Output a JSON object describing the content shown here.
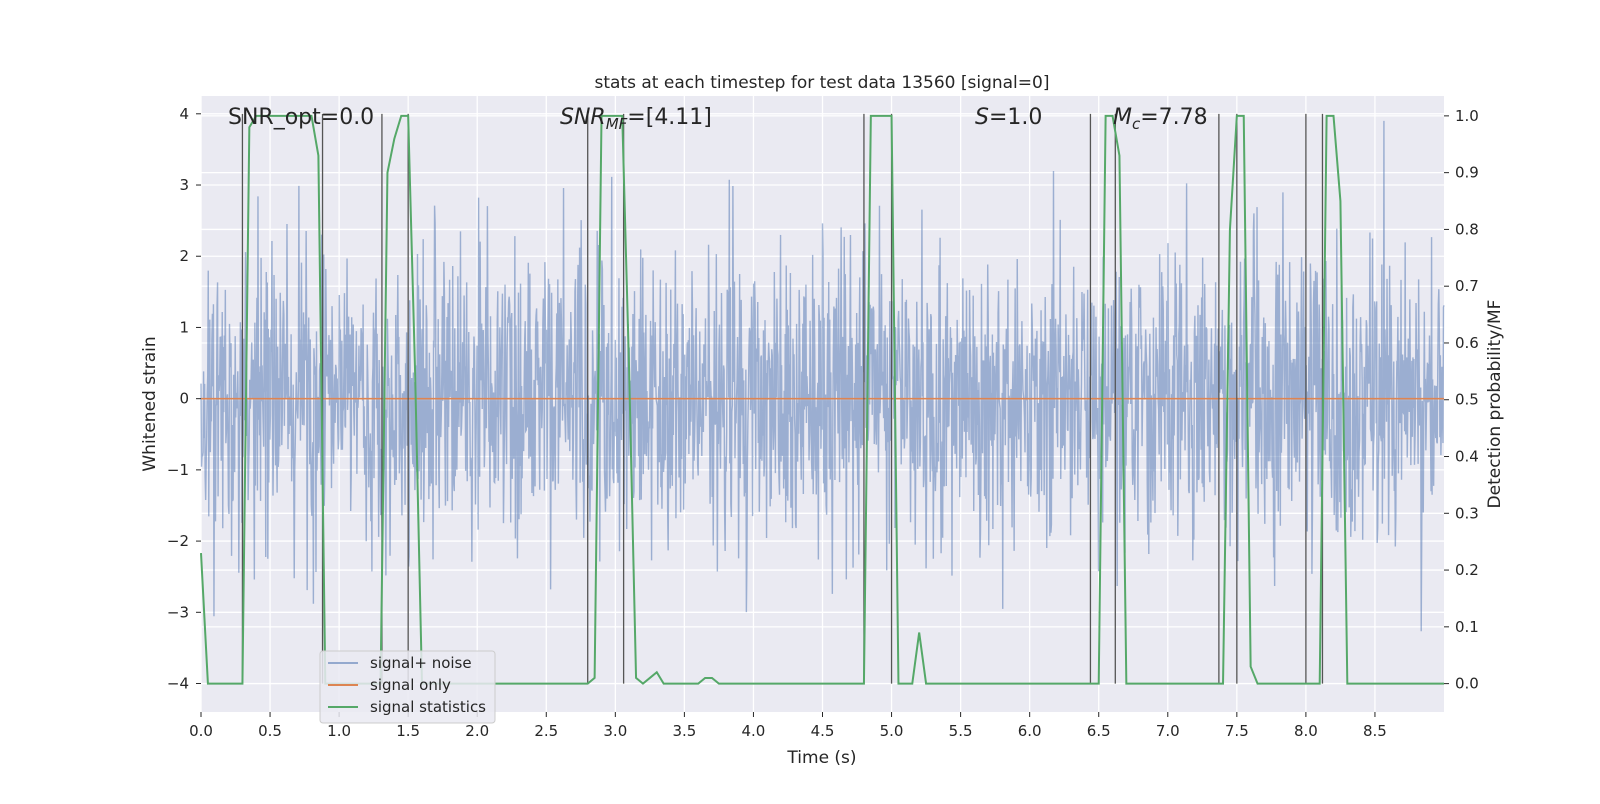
{
  "chart_data": {
    "type": "line",
    "title": "stats at each timestep for test data 13560 [signal=0]",
    "xlabel": "Time (s)",
    "ylabel_left": "Whitened strain",
    "ylabel_right": "Detection probability/MF",
    "xlim": [
      0,
      9.0
    ],
    "ylim_left": [
      -4.4,
      4.25
    ],
    "ylim_right": [
      -0.05,
      1.035
    ],
    "x_ticks": [
      "0.0",
      "0.5",
      "1.0",
      "1.5",
      "2.0",
      "2.5",
      "3.0",
      "3.5",
      "4.0",
      "4.5",
      "5.0",
      "5.5",
      "6.0",
      "6.5",
      "7.0",
      "7.5",
      "8.0",
      "8.5"
    ],
    "y_left_ticks": [
      "4",
      "3",
      "2",
      "1",
      "0",
      "−1",
      "−2",
      "−3",
      "−4"
    ],
    "y_right_ticks": [
      "1.0",
      "0.9",
      "0.8",
      "0.7",
      "0.6",
      "0.5",
      "0.4",
      "0.3",
      "0.2",
      "0.1",
      "0.0"
    ],
    "grid": true,
    "legend_position": "lower-left",
    "annotations": {
      "snr_opt": "SNR_opt=0.0",
      "snr_mf_sym": "SNR",
      "snr_mf_sub": "MF",
      "snr_mf_val": "=[4.11]",
      "s_sym": "S",
      "s_val": "=1.0",
      "mc_sym": "M",
      "mc_sub": "c",
      "mc_val": "=7.78"
    },
    "series": [
      {
        "name": "signal+ noise",
        "color": "#4c72b0",
        "noise_std": 1.0,
        "axis": "left"
      },
      {
        "name": "signal only",
        "color": "#dd8452",
        "y": 0,
        "axis": "left"
      },
      {
        "name": "signal statistics",
        "color": "#55a868",
        "axis": "right",
        "x": [
          0.0,
          0.05,
          0.1,
          0.15,
          0.2,
          0.25,
          0.3,
          0.35,
          0.4,
          0.45,
          0.5,
          0.55,
          0.6,
          0.65,
          0.7,
          0.75,
          0.8,
          0.85,
          0.9,
          0.95,
          1.0,
          1.05,
          1.1,
          1.15,
          1.2,
          1.25,
          1.3,
          1.35,
          1.4,
          1.45,
          1.5,
          1.55,
          1.6,
          1.65,
          1.7,
          1.75,
          1.8,
          1.85,
          1.9,
          1.95,
          2.0,
          2.05,
          2.1,
          2.15,
          2.2,
          2.25,
          2.3,
          2.35,
          2.4,
          2.45,
          2.5,
          2.55,
          2.6,
          2.65,
          2.7,
          2.75,
          2.8,
          2.85,
          2.9,
          2.95,
          3.0,
          3.05,
          3.1,
          3.15,
          3.2,
          3.25,
          3.3,
          3.35,
          3.4,
          3.45,
          3.5,
          3.55,
          3.6,
          3.65,
          3.7,
          3.75,
          3.8,
          3.85,
          3.9,
          3.95,
          4.0,
          4.05,
          4.1,
          4.15,
          4.2,
          4.25,
          4.3,
          4.35,
          4.4,
          4.45,
          4.5,
          4.55,
          4.6,
          4.65,
          4.7,
          4.75,
          4.8,
          4.85,
          4.9,
          4.95,
          5.0,
          5.05,
          5.1,
          5.15,
          5.2,
          5.25,
          5.3,
          5.35,
          5.4,
          5.45,
          5.5,
          5.55,
          5.6,
          5.65,
          5.7,
          5.75,
          5.8,
          5.85,
          5.9,
          5.95,
          6.0,
          6.05,
          6.1,
          6.15,
          6.2,
          6.25,
          6.3,
          6.35,
          6.4,
          6.45,
          6.5,
          6.55,
          6.6,
          6.65,
          6.7,
          6.75,
          6.8,
          6.85,
          6.9,
          6.95,
          7.0,
          7.05,
          7.1,
          7.15,
          7.2,
          7.25,
          7.3,
          7.35,
          7.4,
          7.45,
          7.5,
          7.55,
          7.6,
          7.65,
          7.7,
          7.75,
          7.8,
          7.85,
          7.9,
          7.95,
          8.0,
          8.05,
          8.1,
          8.15,
          8.2,
          8.25,
          8.3,
          8.35,
          8.4,
          8.45,
          8.5,
          8.55,
          8.6,
          8.65,
          8.7,
          8.75,
          8.8,
          8.85,
          8.9,
          8.95,
          9.0
        ],
        "y": [
          0.23,
          0.0,
          0.0,
          0.0,
          0.0,
          0.0,
          0.0,
          0.98,
          1.0,
          1.0,
          1.0,
          1.0,
          1.0,
          1.0,
          1.0,
          1.0,
          1.0,
          0.93,
          0.0,
          0.0,
          0.0,
          0.0,
          0.0,
          0.0,
          0.0,
          0.0,
          0.0,
          0.9,
          0.96,
          1.0,
          1.0,
          0.55,
          0.0,
          0.0,
          0.0,
          0.0,
          0.0,
          0.0,
          0.0,
          0.0,
          0.0,
          0.0,
          0.0,
          0.0,
          0.0,
          0.0,
          0.0,
          0.0,
          0.0,
          0.0,
          0.0,
          0.0,
          0.0,
          0.0,
          0.0,
          0.0,
          0.0,
          0.01,
          1.0,
          1.0,
          1.0,
          1.0,
          0.55,
          0.01,
          0.0,
          0.01,
          0.02,
          0.0,
          0.0,
          0.0,
          0.0,
          0.0,
          0.0,
          0.01,
          0.01,
          0.0,
          0.0,
          0.0,
          0.0,
          0.0,
          0.0,
          0.0,
          0.0,
          0.0,
          0.0,
          0.0,
          0.0,
          0.0,
          0.0,
          0.0,
          0.0,
          0.0,
          0.0,
          0.0,
          0.0,
          0.0,
          0.0,
          1.0,
          1.0,
          1.0,
          1.0,
          0.0,
          0.0,
          0.0,
          0.09,
          0.0,
          0.0,
          0.0,
          0.0,
          0.0,
          0.0,
          0.0,
          0.0,
          0.0,
          0.0,
          0.0,
          0.0,
          0.0,
          0.0,
          0.0,
          0.0,
          0.0,
          0.0,
          0.0,
          0.0,
          0.0,
          0.0,
          0.0,
          0.0,
          0.0,
          0.0,
          1.0,
          1.0,
          0.93,
          0.0,
          0.0,
          0.0,
          0.0,
          0.0,
          0.0,
          0.0,
          0.0,
          0.0,
          0.0,
          0.0,
          0.0,
          0.0,
          0.0,
          0.0,
          0.8,
          1.0,
          1.0,
          0.03,
          0.0,
          0.0,
          0.0,
          0.0,
          0.0,
          0.0,
          0.0,
          0.0,
          0.0,
          0.0,
          1.0,
          1.0,
          0.85,
          0.0,
          0.0,
          0.0,
          0.0,
          0.0,
          0.0,
          0.0,
          0.0,
          0.0,
          0.0,
          0.0,
          0.0,
          0.0,
          0.0,
          0.0
        ]
      }
    ],
    "detection_markers": [
      0.3,
      0.88,
      1.31,
      1.5,
      2.8,
      3.06,
      4.8,
      5.0,
      6.44,
      6.62,
      7.37,
      7.5,
      8.0,
      8.12
    ]
  }
}
